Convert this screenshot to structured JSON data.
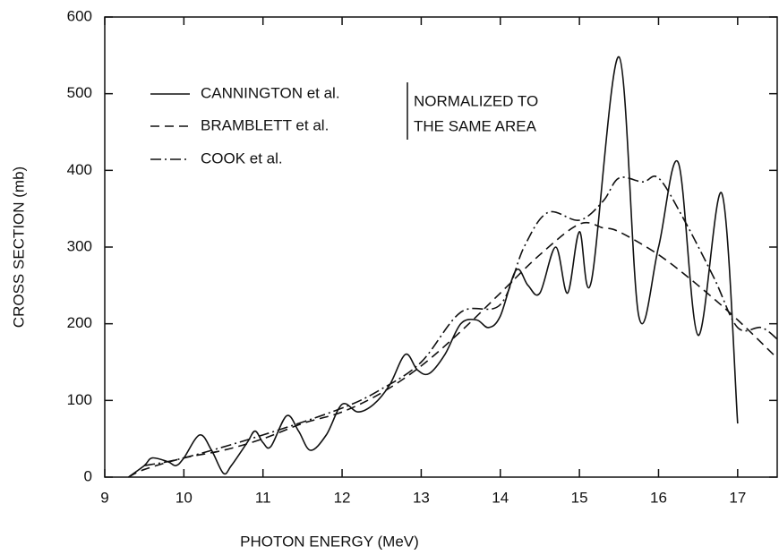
{
  "chart_data": {
    "type": "line",
    "xlabel": "PHOTON ENERGY (MeV)",
    "ylabel": "CROSS SECTION (mb)",
    "annotation": [
      "NORMALIZED TO",
      "THE SAME AREA"
    ],
    "xlim": [
      9,
      17.5
    ],
    "xticks": [
      9,
      10,
      11,
      12,
      13,
      14,
      15,
      16,
      17
    ],
    "ylim": [
      0,
      600
    ],
    "yticks": [
      0,
      100,
      200,
      300,
      400,
      500,
      600
    ],
    "legend": "upper left",
    "series": [
      {
        "name": "CANNINGTON et al.",
        "color": "#111111",
        "dash": "solid",
        "x": [
          9.3,
          9.5,
          9.6,
          9.8,
          9.9,
          10.0,
          10.2,
          10.35,
          10.5,
          10.6,
          10.8,
          10.9,
          11.0,
          11.1,
          11.3,
          11.45,
          11.6,
          11.8,
          12.0,
          12.2,
          12.4,
          12.6,
          12.8,
          12.95,
          13.1,
          13.3,
          13.5,
          13.7,
          13.85,
          14.0,
          14.2,
          14.35,
          14.5,
          14.7,
          14.85,
          15.0,
          15.15,
          15.5,
          15.75,
          16.0,
          16.25,
          16.5,
          16.8,
          17.0
        ],
        "values": [
          0,
          15,
          25,
          20,
          15,
          25,
          55,
          35,
          5,
          15,
          45,
          60,
          45,
          40,
          80,
          60,
          35,
          55,
          95,
          85,
          95,
          120,
          160,
          140,
          135,
          160,
          200,
          205,
          195,
          210,
          270,
          250,
          240,
          300,
          240,
          320,
          255,
          548,
          210,
          300,
          410,
          185,
          370,
          70
        ]
      },
      {
        "name": "BRAMBLETT et al.",
        "color": "#111111",
        "dash": "dashed",
        "x": [
          9.3,
          9.5,
          10.0,
          10.5,
          11.0,
          11.5,
          12.0,
          12.5,
          13.0,
          13.5,
          14.0,
          14.5,
          15.0,
          15.3,
          15.5,
          16.0,
          16.5,
          17.0,
          17.5
        ],
        "values": [
          0,
          10,
          25,
          35,
          50,
          70,
          85,
          110,
          145,
          190,
          240,
          290,
          330,
          325,
          320,
          290,
          250,
          205,
          155
        ]
      },
      {
        "name": "COOK et al.",
        "color": "#111111",
        "dash": "dashdot",
        "x": [
          9.5,
          10.0,
          11.0,
          12.0,
          12.5,
          13.0,
          13.5,
          14.0,
          14.3,
          14.6,
          15.0,
          15.3,
          15.5,
          15.8,
          16.0,
          16.3,
          16.7,
          17.0,
          17.3,
          17.5
        ],
        "values": [
          15,
          25,
          55,
          90,
          115,
          150,
          215,
          225,
          300,
          345,
          335,
          360,
          390,
          385,
          390,
          340,
          260,
          195,
          195,
          180
        ]
      }
    ]
  }
}
